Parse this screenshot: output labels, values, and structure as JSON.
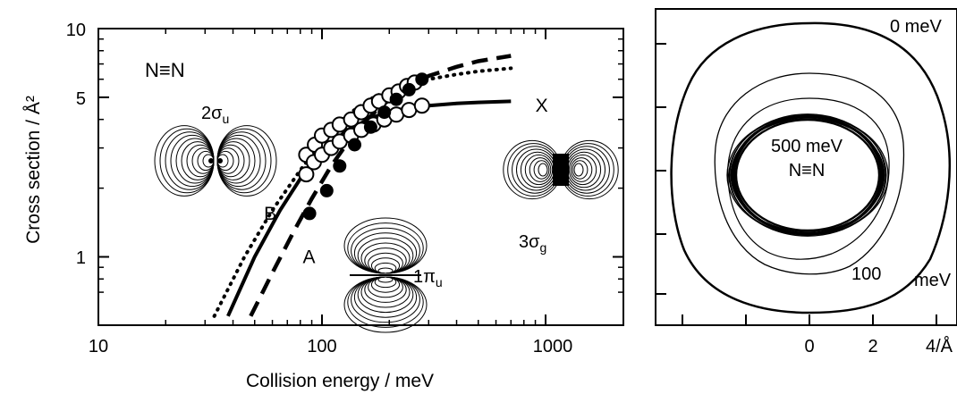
{
  "chart_data": [
    {
      "type": "line",
      "xlabel": "Collision energy / meV",
      "ylabel": "Cross section / Å²",
      "xscale": "log",
      "yscale": "log",
      "xlim": [
        10,
        2000
      ],
      "ylim": [
        0.6,
        10
      ],
      "x_ticks": [
        "10",
        "100",
        "1000"
      ],
      "y_ticks": [
        "10",
        "5",
        "1"
      ],
      "molecule_label": "N≡N",
      "series": [
        {
          "name": "X",
          "style": "solid",
          "x": [
            38,
            50,
            65,
            80,
            100,
            130,
            170,
            230,
            300,
            400,
            500,
            700
          ],
          "y": [
            0.55,
            1.0,
            1.6,
            2.2,
            2.9,
            3.6,
            4.1,
            4.45,
            4.6,
            4.7,
            4.75,
            4.8
          ]
        },
        {
          "name": "B",
          "style": "dotted",
          "x": [
            33,
            45,
            60,
            80,
            100,
            130,
            170,
            220,
            300,
            400,
            500,
            700
          ],
          "y": [
            0.55,
            1.0,
            1.6,
            2.4,
            3.2,
            4.2,
            5.0,
            5.6,
            6.0,
            6.3,
            6.5,
            6.7
          ]
        },
        {
          "name": "A",
          "style": "dashed",
          "x": [
            48,
            60,
            75,
            90,
            110,
            140,
            180,
            230,
            300,
            400,
            500,
            700
          ],
          "y": [
            0.55,
            0.85,
            1.3,
            1.8,
            2.5,
            3.5,
            4.5,
            5.4,
            6.2,
            6.8,
            7.2,
            7.6
          ]
        }
      ],
      "markers": [
        {
          "name": "open circles (upper)",
          "fill": "open",
          "x": [
            85,
            93,
            100,
            110,
            120,
            135,
            150,
            165,
            180,
            200,
            220,
            240,
            260
          ],
          "y": [
            2.8,
            3.1,
            3.4,
            3.6,
            3.8,
            4.0,
            4.3,
            4.6,
            4.8,
            5.1,
            5.3,
            5.6,
            5.8
          ]
        },
        {
          "name": "open circles (lower)",
          "fill": "open",
          "x": [
            85,
            92,
            100,
            110,
            120,
            135,
            150,
            170,
            190,
            215,
            245,
            280
          ],
          "y": [
            2.3,
            2.6,
            2.8,
            3.0,
            3.2,
            3.4,
            3.6,
            3.8,
            4.0,
            4.2,
            4.4,
            4.6
          ]
        },
        {
          "name": "filled circles",
          "fill": "filled",
          "x": [
            88,
            105,
            120,
            140,
            165,
            190,
            215,
            245,
            280
          ],
          "y": [
            1.55,
            1.95,
            2.5,
            3.1,
            3.7,
            4.3,
            4.9,
            5.4,
            6.0
          ]
        }
      ],
      "annotations": [
        {
          "text": "X",
          "x": 900,
          "y": 4.6
        },
        {
          "text": "B",
          "x": 55,
          "y": 1.55
        },
        {
          "text": "A",
          "x": 82,
          "y": 1.0
        }
      ],
      "orbital_labels": [
        {
          "main": "2σ",
          "sub": "u"
        },
        {
          "main": "1π",
          "sub": "u"
        },
        {
          "main": "3σ",
          "sub": "g"
        }
      ]
    },
    {
      "type": "contour",
      "x_ticks": [
        "0",
        "2",
        "4/Å"
      ],
      "energy_labels": [
        "0 meV",
        "500 meV",
        "100",
        "meV"
      ],
      "molecule_label": "N≡N",
      "contours_meV": [
        0,
        100,
        500
      ]
    }
  ]
}
